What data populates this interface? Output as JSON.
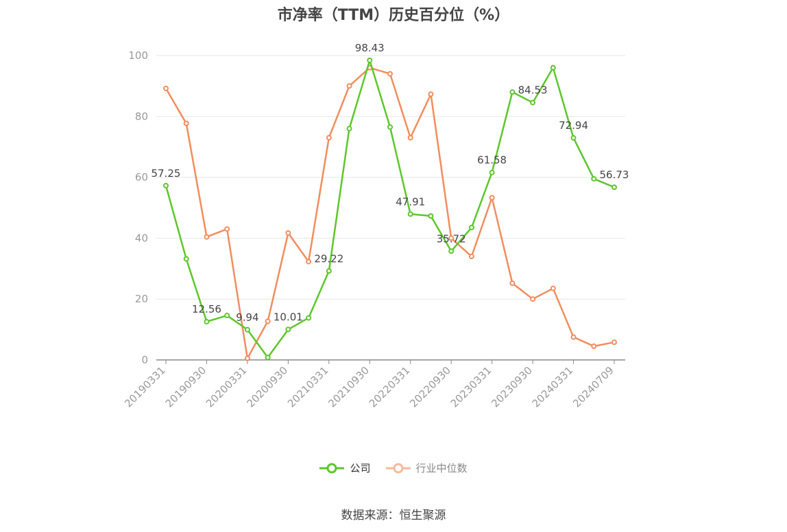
{
  "chart_data": {
    "type": "line",
    "title": "市净率（TTM）历史百分位（%）",
    "x": [
      "20190331",
      "20190630",
      "20190930",
      "20191231",
      "20200331",
      "20200630",
      "20200930",
      "20201231",
      "20210331",
      "20210630",
      "20210930",
      "20211231",
      "20220331",
      "20220630",
      "20220930",
      "20221231",
      "20230331",
      "20230630",
      "20230930",
      "20231231",
      "20240331",
      "20240630",
      "20240709"
    ],
    "x_tick_labels": [
      "20190331",
      "20190930",
      "20200331",
      "20200930",
      "20210331",
      "20210930",
      "20220331",
      "20220930",
      "20230331",
      "20230930",
      "20240331",
      "20240709"
    ],
    "y_ticks": [
      "0",
      "20",
      "40",
      "60",
      "80",
      "100"
    ],
    "ylim": [
      0,
      100
    ],
    "grid": true,
    "legend_position": "bottom",
    "series": [
      {
        "name": "公司",
        "color": "#5cc62a",
        "values": [
          57.25,
          33.2,
          12.56,
          14.6,
          9.94,
          0.8,
          10.01,
          13.8,
          29.22,
          76.0,
          98.43,
          76.5,
          47.91,
          47.3,
          35.72,
          43.5,
          61.58,
          88.0,
          84.53,
          96.0,
          72.94,
          59.5,
          56.73
        ]
      },
      {
        "name": "行业中位数",
        "color": "#f28c5c",
        "values": [
          89.2,
          77.7,
          40.4,
          43.0,
          0.5,
          12.7,
          41.7,
          32.3,
          73.0,
          90.0,
          96.0,
          94.0,
          73.0,
          87.3,
          40.0,
          34.0,
          53.3,
          25.2,
          20.0,
          23.5,
          7.5,
          4.5,
          5.8
        ]
      }
    ],
    "data_labels": [
      {
        "index": 0,
        "text": "57.25"
      },
      {
        "index": 2,
        "text": "12.56"
      },
      {
        "index": 4,
        "text": "9.94"
      },
      {
        "index": 6,
        "text": "10.01"
      },
      {
        "index": 8,
        "text": "29.22"
      },
      {
        "index": 10,
        "text": "98.43"
      },
      {
        "index": 12,
        "text": "47.91"
      },
      {
        "index": 14,
        "text": "35.72"
      },
      {
        "index": 16,
        "text": "61.58"
      },
      {
        "index": 18,
        "text": "84.53"
      },
      {
        "index": 20,
        "text": "72.94"
      },
      {
        "index": 22,
        "text": "56.73"
      }
    ]
  },
  "legend": {
    "company": "公司",
    "industry": "行业中位数"
  },
  "source": "数据来源：恒生聚源"
}
